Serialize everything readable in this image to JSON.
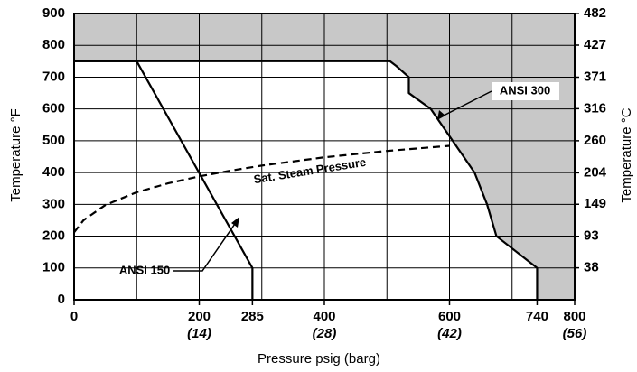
{
  "chart_data": {
    "type": "line",
    "xlabel": "Pressure psig (barg)",
    "ylabel": "Temperature °F",
    "y2label": "Temperature °C",
    "xlim": [
      0,
      800
    ],
    "ylim": [
      0,
      900
    ],
    "y2lim": [
      -17.8,
      482.2
    ],
    "xticks": [
      0,
      200,
      285,
      400,
      600,
      740,
      800
    ],
    "xticks_barg": [
      {
        "value": 200,
        "label": "(14)"
      },
      {
        "value": 400,
        "label": "(28)"
      },
      {
        "value": 600,
        "label": "(42)"
      },
      {
        "value": 800,
        "label": "(56)"
      }
    ],
    "x_grid_lines": [
      100,
      200,
      300,
      400,
      500,
      600,
      700
    ],
    "yticks": [
      0,
      100,
      200,
      300,
      400,
      500,
      600,
      700,
      800,
      900
    ],
    "y2ticks": [
      38,
      93,
      149,
      204,
      260,
      316,
      371,
      427,
      482
    ],
    "grid": true,
    "shade_color": "#c8c8c8",
    "series": [
      {
        "name": "ANSI 150",
        "color": "#000000",
        "dashed": false,
        "x": [
          0,
          100,
          285,
          285
        ],
        "values": [
          750,
          750,
          100,
          0
        ]
      },
      {
        "name": "ANSI 300",
        "color": "#000000",
        "dashed": false,
        "shaded": true,
        "x": [
          0,
          505,
          515,
          535,
          535,
          570,
          605,
          640,
          660,
          675,
          740,
          740
        ],
        "values": [
          750,
          750,
          735,
          700,
          650,
          600,
          500,
          400,
          300,
          200,
          100,
          0
        ]
      },
      {
        "name": "Sat. Steam Pressure",
        "color": "#000000",
        "dashed": true,
        "x": [
          0,
          15,
          50,
          100,
          150,
          200,
          250,
          300,
          400,
          500,
          600
        ],
        "values": [
          212,
          250,
          298,
          338,
          366,
          388,
          406,
          422,
          448,
          468,
          484
        ]
      }
    ]
  }
}
